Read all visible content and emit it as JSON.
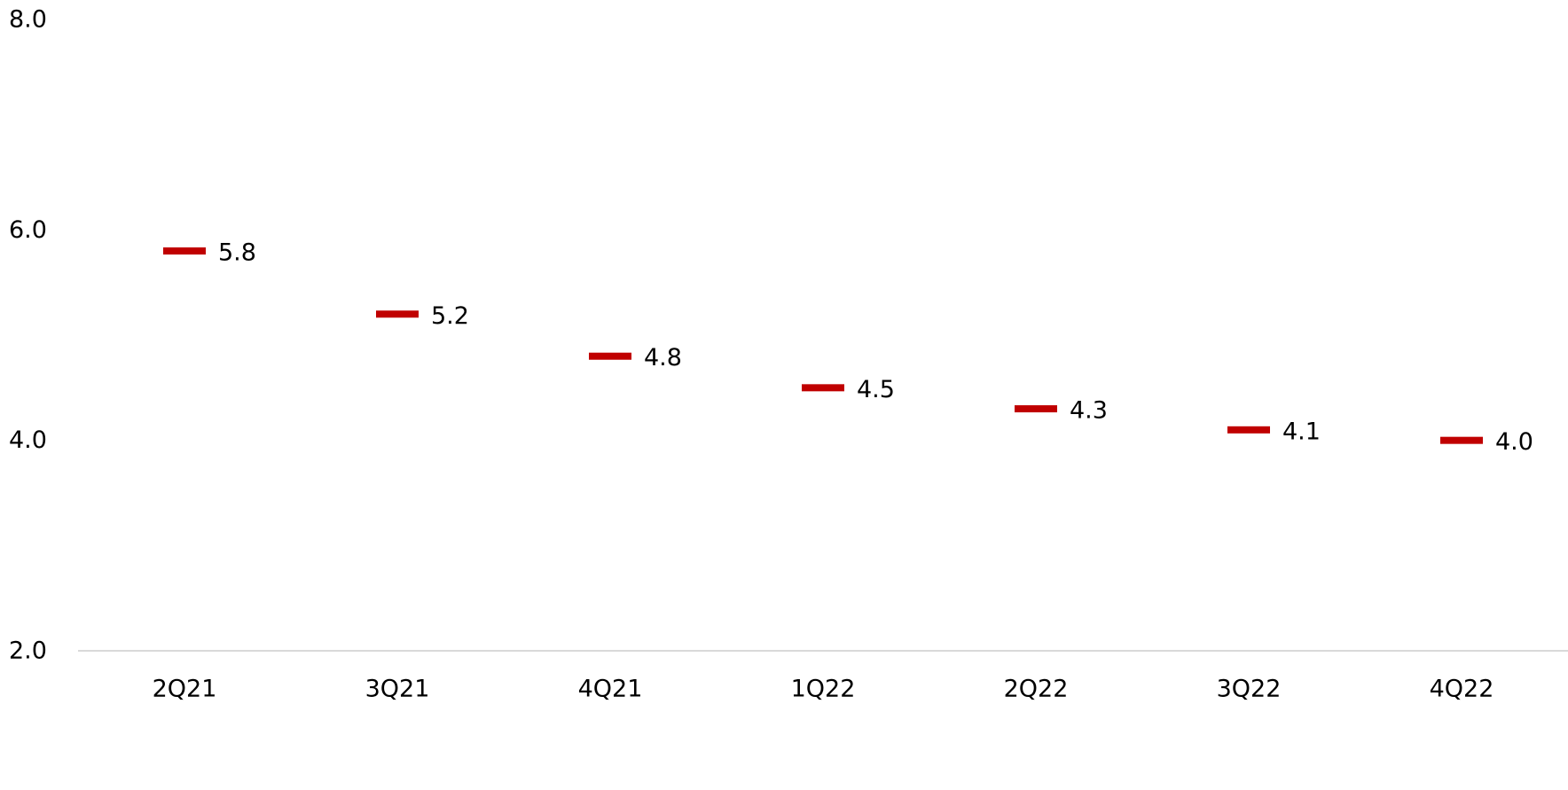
{
  "chart_data": {
    "type": "line",
    "categories": [
      "2Q21",
      "3Q21",
      "4Q21",
      "1Q22",
      "2Q22",
      "3Q22",
      "4Q22"
    ],
    "series": [
      {
        "values": [
          5.8,
          5.2,
          4.8,
          4.5,
          4.3,
          4.1,
          4.0
        ],
        "labels": [
          "5.8",
          "5.2",
          "4.8",
          "4.5",
          "4.3",
          "4.1",
          "4.0"
        ],
        "marker": "dash",
        "color": "#C00000"
      }
    ],
    "yticks": [
      2.0,
      4.0,
      6.0,
      8.0
    ],
    "ytick_labels": [
      "2.0",
      "4.0",
      "6.0",
      "8.0"
    ],
    "ylim": [
      2.0,
      8.0
    ],
    "grid": false,
    "legend": "none",
    "axis_color": "#D9D9D9"
  }
}
